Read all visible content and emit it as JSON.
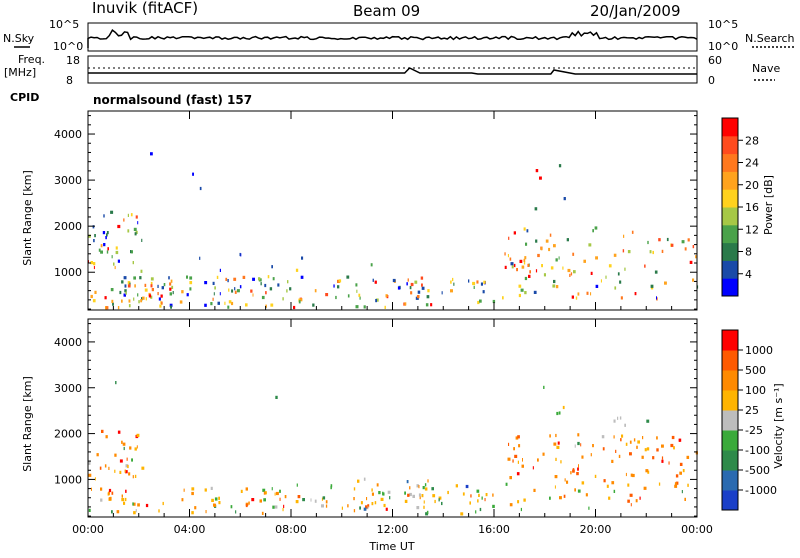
{
  "header": {
    "station": "Inuvik (fitACF)",
    "beam": "Beam 09",
    "date": "20/Jan/2009"
  },
  "noise_panel": {
    "left_label": "N.Sky",
    "left_ticks": [
      "10^5",
      "10^0"
    ],
    "right_ticks": [
      "10^5",
      "10^0"
    ],
    "right_label": "N.Search"
  },
  "freq_panel": {
    "left_label_1": "Freq.",
    "left_label_2": "[MHz]",
    "left_ticks": [
      "18",
      "8"
    ],
    "right_ticks": [
      "60",
      "0"
    ],
    "right_label": "Nave",
    "cpid_label": "CPID",
    "mode_text": "normalsound (fast) 157"
  },
  "colors": {
    "power_scale": [
      "#0000ff",
      "#1a4aa8",
      "#2a7a4a",
      "#4aa24a",
      "#a6c846",
      "#ffd21e",
      "#ffa31e",
      "#ff781e",
      "#ff4b1e",
      "#ff0000"
    ],
    "velocity_scale": [
      "#1a3fc8",
      "#2a6ab0",
      "#2e8a4a",
      "#3aaa3a",
      "#bdbdbd",
      "#ffb400",
      "#ff8a00",
      "#ff5a00",
      "#ff0000"
    ]
  },
  "chart_data": [
    {
      "type": "heatmap",
      "name": "power",
      "xlabel": "",
      "ylabel": "Slant Range [km]",
      "ylim": [
        180,
        4500
      ],
      "yticks": [
        1000,
        2000,
        3000,
        4000
      ],
      "colorbar": {
        "label": "Power [dB]",
        "range": [
          0,
          32
        ],
        "ticks": [
          4,
          8,
          12,
          16,
          20,
          24,
          28
        ]
      }
    },
    {
      "type": "heatmap",
      "name": "velocity",
      "xlabel": "Time UT",
      "ylabel": "Slant Range [km]",
      "ylim": [
        180,
        4500
      ],
      "yticks": [
        1000,
        2000,
        3000,
        4000
      ],
      "xticks": [
        "00:00",
        "04:00",
        "08:00",
        "12:00",
        "16:00",
        "20:00",
        "00:00"
      ],
      "colorbar": {
        "label": "Velocity [m s⁻¹]",
        "ticks": [
          "1000",
          "500",
          "100",
          "25",
          "-25",
          "-100",
          "-500",
          "-1000"
        ]
      }
    }
  ]
}
